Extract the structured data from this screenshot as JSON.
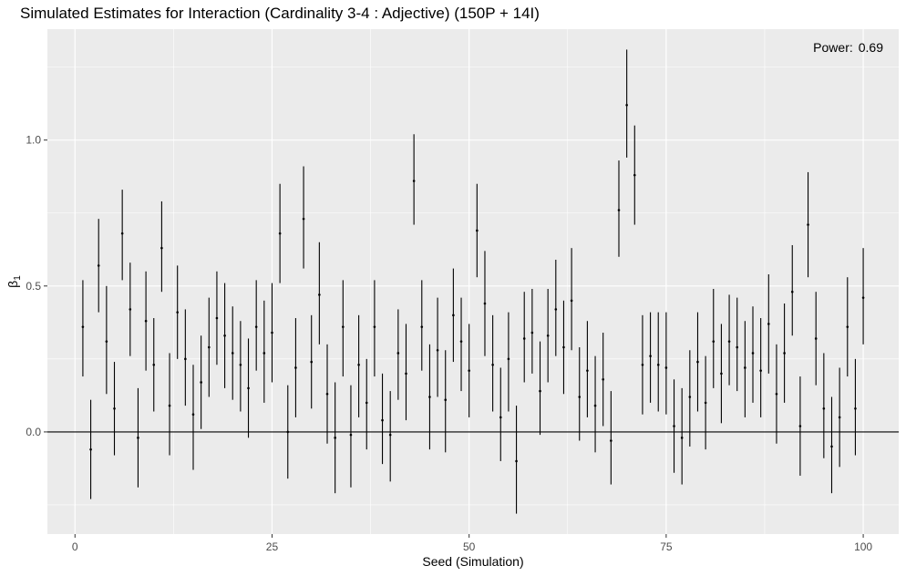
{
  "chart_data": {
    "type": "errorbar",
    "title": "Simulated Estimates for Interaction (Cardinality 3-4 : Adjective) (150P + 14I)",
    "xlabel": "Seed (Simulation)",
    "ylabel": "β",
    "ylabel_subscript": "1",
    "annotation": {
      "label": "Power:",
      "value": "0.69"
    },
    "xlim": [
      -3.5,
      104.5
    ],
    "ylim": [
      -0.35,
      1.38
    ],
    "x_ticks": [
      0,
      25,
      50,
      75,
      100
    ],
    "x_tick_labels": [
      "0",
      "25",
      "50",
      "75",
      "100"
    ],
    "y_ticks": [
      0.0,
      0.5,
      1.0
    ],
    "y_tick_labels": [
      "0.0",
      "0.5",
      "1.0"
    ],
    "hline": 0,
    "grid": true,
    "colors": {
      "panel": "#ebebeb",
      "grid": "#ffffff",
      "mark": "#000000"
    },
    "points": [
      {
        "x": 1,
        "y": 0.36,
        "lo": 0.19,
        "hi": 0.52
      },
      {
        "x": 2,
        "y": -0.06,
        "lo": -0.23,
        "hi": 0.11
      },
      {
        "x": 3,
        "y": 0.57,
        "lo": 0.41,
        "hi": 0.73
      },
      {
        "x": 4,
        "y": 0.31,
        "lo": 0.13,
        "hi": 0.5
      },
      {
        "x": 5,
        "y": 0.08,
        "lo": -0.08,
        "hi": 0.24
      },
      {
        "x": 6,
        "y": 0.68,
        "lo": 0.52,
        "hi": 0.83
      },
      {
        "x": 7,
        "y": 0.42,
        "lo": 0.26,
        "hi": 0.58
      },
      {
        "x": 8,
        "y": -0.02,
        "lo": -0.19,
        "hi": 0.15
      },
      {
        "x": 9,
        "y": 0.38,
        "lo": 0.21,
        "hi": 0.55
      },
      {
        "x": 10,
        "y": 0.23,
        "lo": 0.07,
        "hi": 0.39
      },
      {
        "x": 11,
        "y": 0.63,
        "lo": 0.48,
        "hi": 0.79
      },
      {
        "x": 12,
        "y": 0.09,
        "lo": -0.08,
        "hi": 0.27
      },
      {
        "x": 13,
        "y": 0.41,
        "lo": 0.25,
        "hi": 0.57
      },
      {
        "x": 14,
        "y": 0.25,
        "lo": 0.09,
        "hi": 0.42
      },
      {
        "x": 15,
        "y": 0.06,
        "lo": -0.13,
        "hi": 0.23
      },
      {
        "x": 16,
        "y": 0.17,
        "lo": 0.01,
        "hi": 0.33
      },
      {
        "x": 17,
        "y": 0.29,
        "lo": 0.12,
        "hi": 0.46
      },
      {
        "x": 18,
        "y": 0.39,
        "lo": 0.23,
        "hi": 0.55
      },
      {
        "x": 19,
        "y": 0.33,
        "lo": 0.15,
        "hi": 0.51
      },
      {
        "x": 20,
        "y": 0.27,
        "lo": 0.11,
        "hi": 0.43
      },
      {
        "x": 21,
        "y": 0.23,
        "lo": 0.07,
        "hi": 0.38
      },
      {
        "x": 22,
        "y": 0.15,
        "lo": -0.02,
        "hi": 0.32
      },
      {
        "x": 23,
        "y": 0.36,
        "lo": 0.21,
        "hi": 0.52
      },
      {
        "x": 24,
        "y": 0.27,
        "lo": 0.1,
        "hi": 0.45
      },
      {
        "x": 25,
        "y": 0.34,
        "lo": 0.17,
        "hi": 0.51
      },
      {
        "x": 26,
        "y": 0.68,
        "lo": 0.51,
        "hi": 0.85
      },
      {
        "x": 27,
        "y": 0.0,
        "lo": -0.16,
        "hi": 0.16
      },
      {
        "x": 28,
        "y": 0.22,
        "lo": 0.05,
        "hi": 0.39
      },
      {
        "x": 29,
        "y": 0.73,
        "lo": 0.56,
        "hi": 0.91
      },
      {
        "x": 30,
        "y": 0.24,
        "lo": 0.08,
        "hi": 0.4
      },
      {
        "x": 31,
        "y": 0.47,
        "lo": 0.3,
        "hi": 0.65
      },
      {
        "x": 32,
        "y": 0.13,
        "lo": -0.04,
        "hi": 0.3
      },
      {
        "x": 33,
        "y": -0.02,
        "lo": -0.21,
        "hi": 0.17
      },
      {
        "x": 34,
        "y": 0.36,
        "lo": 0.19,
        "hi": 0.52
      },
      {
        "x": 35,
        "y": -0.01,
        "lo": -0.19,
        "hi": 0.16
      },
      {
        "x": 36,
        "y": 0.23,
        "lo": 0.05,
        "hi": 0.4
      },
      {
        "x": 37,
        "y": 0.1,
        "lo": -0.06,
        "hi": 0.25
      },
      {
        "x": 38,
        "y": 0.36,
        "lo": 0.19,
        "hi": 0.52
      },
      {
        "x": 39,
        "y": 0.04,
        "lo": -0.11,
        "hi": 0.2
      },
      {
        "x": 40,
        "y": -0.01,
        "lo": -0.17,
        "hi": 0.14
      },
      {
        "x": 41,
        "y": 0.27,
        "lo": 0.11,
        "hi": 0.42
      },
      {
        "x": 42,
        "y": 0.2,
        "lo": 0.04,
        "hi": 0.37
      },
      {
        "x": 43,
        "y": 0.86,
        "lo": 0.71,
        "hi": 1.02
      },
      {
        "x": 44,
        "y": 0.36,
        "lo": 0.21,
        "hi": 0.52
      },
      {
        "x": 45,
        "y": 0.12,
        "lo": -0.06,
        "hi": 0.3
      },
      {
        "x": 46,
        "y": 0.28,
        "lo": 0.12,
        "hi": 0.46
      },
      {
        "x": 47,
        "y": 0.11,
        "lo": -0.07,
        "hi": 0.28
      },
      {
        "x": 48,
        "y": 0.4,
        "lo": 0.24,
        "hi": 0.56
      },
      {
        "x": 49,
        "y": 0.31,
        "lo": 0.14,
        "hi": 0.46
      },
      {
        "x": 50,
        "y": 0.21,
        "lo": 0.05,
        "hi": 0.37
      },
      {
        "x": 51,
        "y": 0.69,
        "lo": 0.53,
        "hi": 0.85
      },
      {
        "x": 52,
        "y": 0.44,
        "lo": 0.26,
        "hi": 0.62
      },
      {
        "x": 53,
        "y": 0.23,
        "lo": 0.07,
        "hi": 0.4
      },
      {
        "x": 54,
        "y": 0.05,
        "lo": -0.1,
        "hi": 0.22
      },
      {
        "x": 55,
        "y": 0.25,
        "lo": 0.07,
        "hi": 0.41
      },
      {
        "x": 56,
        "y": -0.1,
        "lo": -0.28,
        "hi": 0.09
      },
      {
        "x": 57,
        "y": 0.32,
        "lo": 0.17,
        "hi": 0.48
      },
      {
        "x": 58,
        "y": 0.34,
        "lo": 0.2,
        "hi": 0.49
      },
      {
        "x": 59,
        "y": 0.14,
        "lo": -0.01,
        "hi": 0.31
      },
      {
        "x": 60,
        "y": 0.33,
        "lo": 0.17,
        "hi": 0.49
      },
      {
        "x": 61,
        "y": 0.42,
        "lo": 0.26,
        "hi": 0.59
      },
      {
        "x": 62,
        "y": 0.29,
        "lo": 0.13,
        "hi": 0.45
      },
      {
        "x": 63,
        "y": 0.45,
        "lo": 0.28,
        "hi": 0.63
      },
      {
        "x": 64,
        "y": 0.12,
        "lo": -0.03,
        "hi": 0.29
      },
      {
        "x": 65,
        "y": 0.21,
        "lo": 0.05,
        "hi": 0.38
      },
      {
        "x": 66,
        "y": 0.09,
        "lo": -0.07,
        "hi": 0.26
      },
      {
        "x": 67,
        "y": 0.18,
        "lo": 0.02,
        "hi": 0.34
      },
      {
        "x": 68,
        "y": -0.03,
        "lo": -0.18,
        "hi": 0.14
      },
      {
        "x": 69,
        "y": 0.76,
        "lo": 0.6,
        "hi": 0.93
      },
      {
        "x": 70,
        "y": 1.12,
        "lo": 0.94,
        "hi": 1.31
      },
      {
        "x": 71,
        "y": 0.88,
        "lo": 0.71,
        "hi": 1.05
      },
      {
        "x": 72,
        "y": 0.23,
        "lo": 0.06,
        "hi": 0.4
      },
      {
        "x": 73,
        "y": 0.26,
        "lo": 0.1,
        "hi": 0.41
      },
      {
        "x": 74,
        "y": 0.23,
        "lo": 0.07,
        "hi": 0.41
      },
      {
        "x": 75,
        "y": 0.22,
        "lo": 0.06,
        "hi": 0.41
      },
      {
        "x": 76,
        "y": 0.02,
        "lo": -0.14,
        "hi": 0.18
      },
      {
        "x": 77,
        "y": -0.02,
        "lo": -0.18,
        "hi": 0.15
      },
      {
        "x": 78,
        "y": 0.12,
        "lo": -0.05,
        "hi": 0.28
      },
      {
        "x": 79,
        "y": 0.24,
        "lo": 0.07,
        "hi": 0.41
      },
      {
        "x": 80,
        "y": 0.1,
        "lo": -0.06,
        "hi": 0.26
      },
      {
        "x": 81,
        "y": 0.31,
        "lo": 0.15,
        "hi": 0.49
      },
      {
        "x": 82,
        "y": 0.2,
        "lo": 0.03,
        "hi": 0.37
      },
      {
        "x": 83,
        "y": 0.31,
        "lo": 0.16,
        "hi": 0.47
      },
      {
        "x": 84,
        "y": 0.29,
        "lo": 0.14,
        "hi": 0.46
      },
      {
        "x": 85,
        "y": 0.22,
        "lo": 0.05,
        "hi": 0.38
      },
      {
        "x": 86,
        "y": 0.27,
        "lo": 0.1,
        "hi": 0.43
      },
      {
        "x": 87,
        "y": 0.21,
        "lo": 0.05,
        "hi": 0.39
      },
      {
        "x": 88,
        "y": 0.37,
        "lo": 0.2,
        "hi": 0.54
      },
      {
        "x": 89,
        "y": 0.13,
        "lo": -0.04,
        "hi": 0.3
      },
      {
        "x": 90,
        "y": 0.27,
        "lo": 0.1,
        "hi": 0.44
      },
      {
        "x": 91,
        "y": 0.48,
        "lo": 0.33,
        "hi": 0.64
      },
      {
        "x": 92,
        "y": 0.02,
        "lo": -0.15,
        "hi": 0.19
      },
      {
        "x": 93,
        "y": 0.71,
        "lo": 0.53,
        "hi": 0.89
      },
      {
        "x": 94,
        "y": 0.32,
        "lo": 0.16,
        "hi": 0.48
      },
      {
        "x": 95,
        "y": 0.08,
        "lo": -0.09,
        "hi": 0.27
      },
      {
        "x": 96,
        "y": -0.05,
        "lo": -0.21,
        "hi": 0.12
      },
      {
        "x": 97,
        "y": 0.05,
        "lo": -0.12,
        "hi": 0.22
      },
      {
        "x": 98,
        "y": 0.36,
        "lo": 0.19,
        "hi": 0.53
      },
      {
        "x": 99,
        "y": 0.08,
        "lo": -0.08,
        "hi": 0.25
      },
      {
        "x": 100,
        "y": 0.46,
        "lo": 0.3,
        "hi": 0.63
      }
    ]
  }
}
